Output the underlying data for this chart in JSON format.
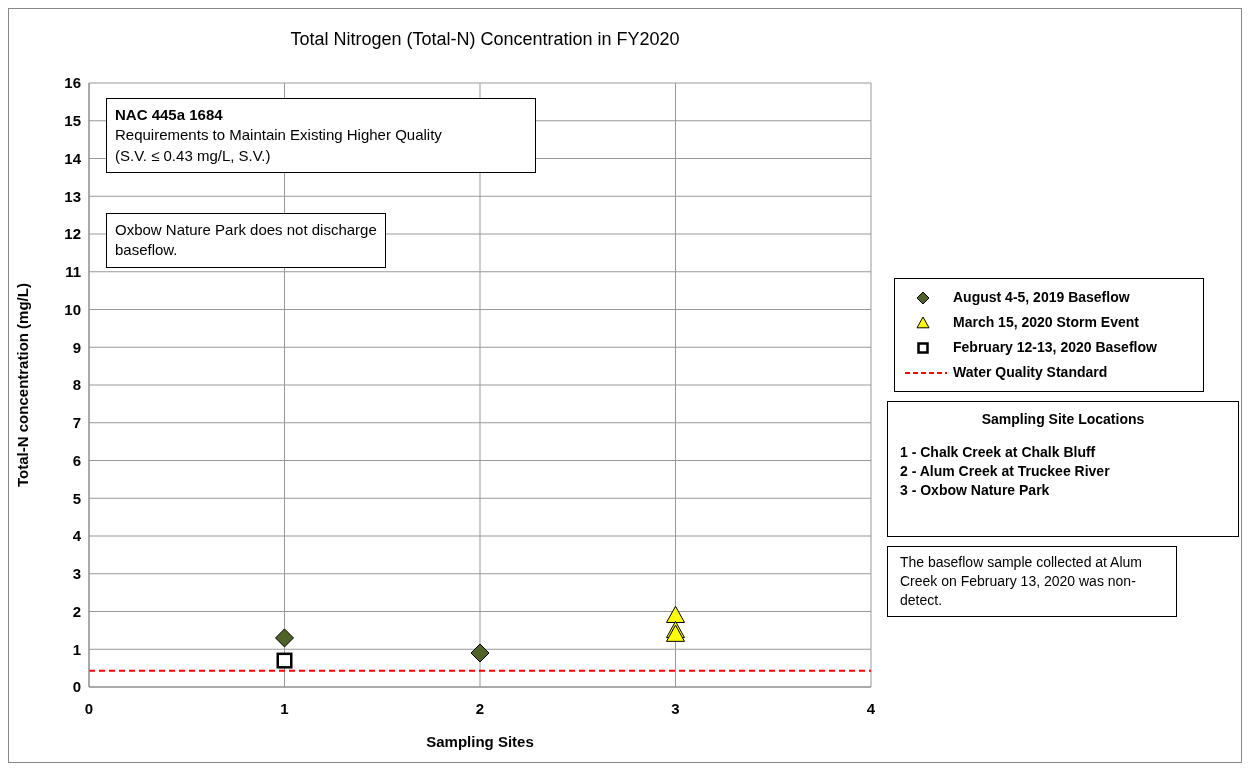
{
  "chart_data": {
    "type": "scatter",
    "title": "Total Nitrogen (Total-N) Concentration in FY2020",
    "xlabel": "Sampling Sites",
    "ylabel": "Total-N concentration (mg/L)",
    "series": [
      {
        "name": "August 4-5, 2019 Baseflow",
        "color": "#4f6228",
        "marker": "diamond",
        "x": [
          1,
          2
        ],
        "values": [
          1.3,
          0.9
        ]
      },
      {
        "name": "March 15, 2020 Storm Event",
        "color": "#ffff00",
        "marker": "triangle",
        "x": [
          3,
          3,
          3
        ],
        "values": [
          1.9,
          1.5,
          1.4
        ]
      },
      {
        "name": "February 12-13, 2020 Baseflow",
        "color": "#000000",
        "marker": "square",
        "x": [
          1
        ],
        "values": [
          0.7
        ]
      }
    ],
    "ref_lines": [
      {
        "axis": "y",
        "value": 0.43,
        "label": "Water Quality Standard",
        "color": "#ff0000",
        "line_style": "dashed"
      }
    ],
    "xlim": [
      0,
      4
    ],
    "xticks": [
      0,
      1,
      2,
      3,
      4
    ],
    "ylim": [
      0,
      16
    ],
    "yticks": [
      0,
      1,
      2,
      3,
      4,
      5,
      6,
      7,
      8,
      9,
      10,
      11,
      12,
      13,
      14,
      15,
      16
    ],
    "grid": true,
    "legend": "right",
    "annotations": [
      "NAC 445a 1684",
      "Requirements to Maintain Existing Higher Quality",
      "(S.V. ≤ 0.43 mg/L, S.V.)",
      "Oxbow Nature Park does not discharge baseflow.",
      "Sampling Site Locations",
      "1 - Chalk Creek at Chalk Bluff",
      "2 - Alum Creek at Truckee River",
      "3 - Oxbow Nature Park",
      "The baseflow sample collected at Alum Creek on February 13, 2020 was non-detect."
    ]
  }
}
